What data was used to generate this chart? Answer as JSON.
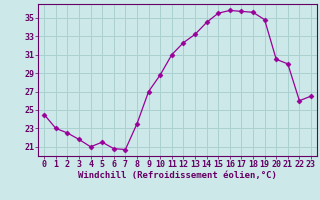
{
  "x": [
    0,
    1,
    2,
    3,
    4,
    5,
    6,
    7,
    8,
    9,
    10,
    11,
    12,
    13,
    14,
    15,
    16,
    17,
    18,
    19,
    20,
    21,
    22,
    23
  ],
  "y": [
    24.5,
    23.0,
    22.5,
    21.8,
    21.0,
    21.5,
    20.8,
    20.7,
    23.5,
    27.0,
    28.8,
    31.0,
    32.3,
    33.2,
    34.5,
    35.5,
    35.8,
    35.7,
    35.6,
    34.8,
    30.5,
    30.0,
    26.0,
    26.5
  ],
  "line_color": "#990099",
  "marker": "D",
  "marker_size": 2.5,
  "bg_color": "#cce8e8",
  "grid_color": "#aad0d0",
  "xlabel": "Windchill (Refroidissement éolien,°C)",
  "xlabel_color": "#660066",
  "tick_color": "#660066",
  "spine_color": "#660066",
  "ylim": [
    20.0,
    36.5
  ],
  "yticks": [
    21,
    23,
    25,
    27,
    29,
    31,
    33,
    35
  ],
  "xlim": [
    -0.5,
    23.5
  ],
  "xticks": [
    0,
    1,
    2,
    3,
    4,
    5,
    6,
    7,
    8,
    9,
    10,
    11,
    12,
    13,
    14,
    15,
    16,
    17,
    18,
    19,
    20,
    21,
    22,
    23
  ],
  "tick_fontsize": 6.0,
  "xlabel_fontsize": 6.5
}
